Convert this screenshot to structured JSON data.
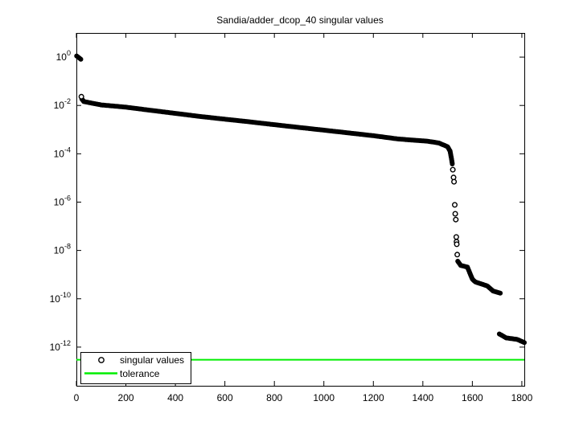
{
  "chart_data": {
    "type": "scatter",
    "title": "Sandia/adder_dcop_40 singular values",
    "xlabel": "",
    "ylabel": "",
    "grid": false,
    "x_axis": {
      "min": 0,
      "max": 1810,
      "ticks": [
        0,
        200,
        400,
        600,
        800,
        1000,
        1200,
        1400,
        1600,
        1800
      ]
    },
    "y_axis": {
      "scale": "log10",
      "min_exp": -13.6,
      "max_exp": 1,
      "tick_base": "10",
      "tick_exps": [
        0,
        -2,
        -4,
        -6,
        -8,
        -10,
        -12
      ]
    },
    "colors": {
      "marker": "#000000",
      "tolerance": "#00ee00",
      "axis": "#000000",
      "background": "#ffffff"
    },
    "series": [
      {
        "name": "singular values",
        "marker": "o",
        "color": "#000000",
        "dense_segments": [
          [
            [
              1,
              1.12
            ],
            [
              18,
              0.82
            ]
          ],
          [
            [
              22,
              0.0185
            ],
            [
              30,
              0.0145
            ],
            [
              100,
              0.0105
            ],
            [
              200,
              0.0085
            ],
            [
              300,
              0.0063
            ],
            [
              400,
              0.0047
            ],
            [
              500,
              0.0035
            ],
            [
              600,
              0.0027
            ],
            [
              700,
              0.0021
            ],
            [
              800,
              0.0016
            ],
            [
              900,
              0.00123
            ],
            [
              1000,
              0.00095
            ],
            [
              1100,
              0.00073
            ],
            [
              1200,
              0.00056
            ],
            [
              1300,
              0.00041
            ],
            [
              1420,
              0.00033
            ],
            [
              1465,
              0.00028
            ],
            [
              1500,
              0.000195
            ],
            [
              1510,
              0.00013
            ],
            [
              1516,
              6e-05
            ],
            [
              1519,
              3.8e-05
            ]
          ],
          [
            [
              1541,
              3.6e-09
            ],
            [
              1553,
              2.4e-09
            ],
            [
              1580,
              2.05e-09
            ],
            [
              1600,
              6.5e-10
            ],
            [
              1612,
              5e-10
            ],
            [
              1660,
              3.4e-10
            ],
            [
              1684,
              2.1e-10
            ],
            [
              1713,
              1.7e-10
            ]
          ],
          [
            [
              1709,
              3.5e-12
            ],
            [
              1737,
              2.4e-12
            ],
            [
              1780,
              2.1e-12
            ],
            [
              1810,
              1.55e-12
            ]
          ]
        ],
        "outlier_points": [
          [
            20,
            0.023
          ],
          [
            1521,
            2.2e-05
          ],
          [
            1524,
            1.05e-05
          ],
          [
            1526,
            7e-06
          ],
          [
            1529,
            7.7e-07
          ],
          [
            1531,
            3.3e-07
          ],
          [
            1533,
            1.9e-07
          ],
          [
            1535,
            3.6e-08
          ],
          [
            1536,
            2.3e-08
          ],
          [
            1537,
            1.8e-08
          ],
          [
            1539,
            6.7e-09
          ]
        ]
      },
      {
        "name": "tolerance",
        "type": "hline",
        "color": "#00ee00",
        "value": 3e-13
      }
    ],
    "legend": {
      "position": "southwest",
      "entries": [
        {
          "label": "singular values",
          "glyph": "circle-marker",
          "color": "#000000"
        },
        {
          "label": "tolerance",
          "glyph": "line",
          "color": "#00ee00"
        }
      ]
    }
  }
}
